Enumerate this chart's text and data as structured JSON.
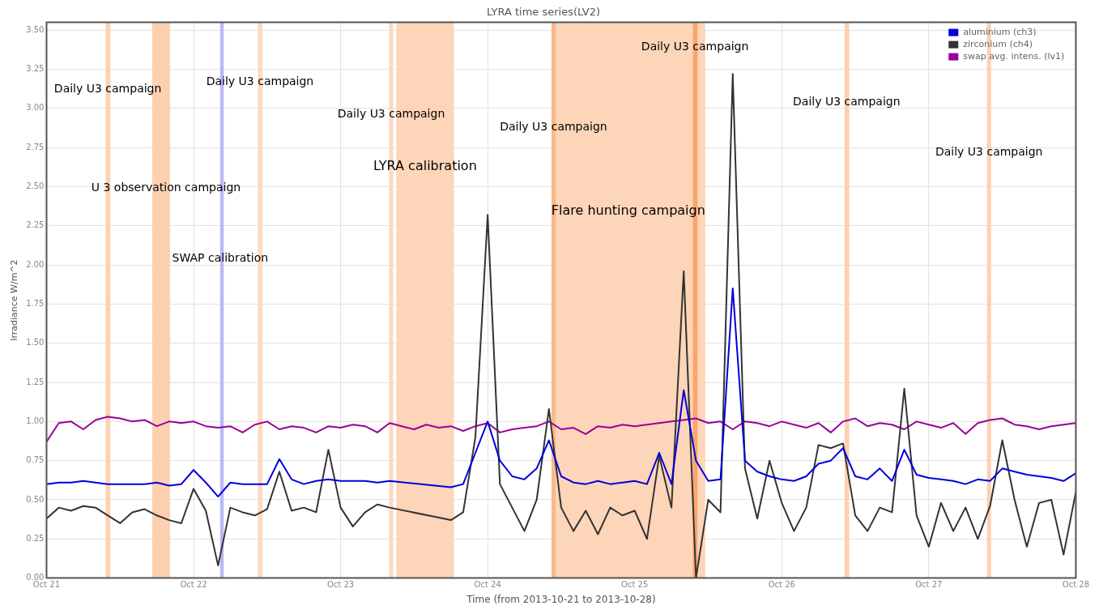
{
  "chart_data": {
    "type": "line",
    "title": "LYRA time series(LV2)",
    "xlabel": "Time (from 2013-10-21 to 2013-10-28)",
    "ylabel": "Irradiance W/m^2",
    "x": [
      "2013-10-21T00:00",
      "2013-10-21T02:00",
      "2013-10-21T04:00",
      "2013-10-21T06:00",
      "2013-10-21T08:00",
      "2013-10-21T10:00",
      "2013-10-21T12:00",
      "2013-10-21T14:00",
      "2013-10-21T16:00",
      "2013-10-21T18:00",
      "2013-10-21T20:00",
      "2013-10-21T22:00",
      "2013-10-22T00:00",
      "2013-10-22T02:00",
      "2013-10-22T04:00",
      "2013-10-22T06:00",
      "2013-10-22T08:00",
      "2013-10-22T10:00",
      "2013-10-22T12:00",
      "2013-10-22T14:00",
      "2013-10-22T16:00",
      "2013-10-22T18:00",
      "2013-10-22T20:00",
      "2013-10-22T22:00",
      "2013-10-23T00:00",
      "2013-10-23T02:00",
      "2013-10-23T04:00",
      "2013-10-23T06:00",
      "2013-10-23T08:00",
      "2013-10-23T10:00",
      "2013-10-23T12:00",
      "2013-10-23T14:00",
      "2013-10-23T16:00",
      "2013-10-23T18:00",
      "2013-10-23T20:00",
      "2013-10-23T22:00",
      "2013-10-24T00:00",
      "2013-10-24T02:00",
      "2013-10-24T04:00",
      "2013-10-24T06:00",
      "2013-10-24T08:00",
      "2013-10-24T10:00",
      "2013-10-24T12:00",
      "2013-10-24T14:00",
      "2013-10-24T16:00",
      "2013-10-24T18:00",
      "2013-10-24T20:00",
      "2013-10-24T22:00",
      "2013-10-25T00:00",
      "2013-10-25T02:00",
      "2013-10-25T04:00",
      "2013-10-25T06:00",
      "2013-10-25T08:00",
      "2013-10-25T10:00",
      "2013-10-25T12:00",
      "2013-10-25T14:00",
      "2013-10-25T16:00",
      "2013-10-25T18:00",
      "2013-10-25T20:00",
      "2013-10-25T22:00",
      "2013-10-26T00:00",
      "2013-10-26T02:00",
      "2013-10-26T04:00",
      "2013-10-26T06:00",
      "2013-10-26T08:00",
      "2013-10-26T10:00",
      "2013-10-26T12:00",
      "2013-10-26T14:00",
      "2013-10-26T16:00",
      "2013-10-26T18:00",
      "2013-10-26T20:00",
      "2013-10-26T22:00",
      "2013-10-27T00:00",
      "2013-10-27T02:00",
      "2013-10-27T04:00",
      "2013-10-27T06:00",
      "2013-10-27T08:00",
      "2013-10-27T10:00",
      "2013-10-27T12:00",
      "2013-10-27T14:00",
      "2013-10-27T16:00",
      "2013-10-27T18:00",
      "2013-10-27T20:00",
      "2013-10-27T22:00",
      "2013-10-28T00:00"
    ],
    "series": [
      {
        "name": "aluminium (ch3)",
        "color": "#0000dd",
        "values": [
          0.6,
          0.61,
          0.61,
          0.62,
          0.61,
          0.6,
          0.6,
          0.6,
          0.6,
          0.61,
          0.59,
          0.6,
          0.69,
          0.61,
          0.52,
          0.61,
          0.6,
          0.6,
          0.6,
          0.76,
          0.63,
          0.6,
          0.62,
          0.63,
          0.62,
          0.62,
          0.62,
          0.61,
          0.62,
          null,
          null,
          null,
          null,
          0.58,
          0.6,
          0.8,
          1.0,
          0.75,
          0.65,
          0.63,
          0.7,
          0.88,
          0.65,
          0.61,
          0.6,
          0.62,
          0.6,
          0.61,
          0.62,
          0.6,
          0.8,
          0.6,
          1.2,
          0.75,
          0.62,
          0.63,
          1.85,
          0.75,
          0.68,
          0.65,
          0.63,
          0.62,
          0.65,
          0.73,
          0.75,
          0.83,
          0.65,
          0.63,
          0.7,
          0.62,
          0.82,
          0.66,
          0.64,
          0.63,
          0.62,
          0.6,
          0.63,
          0.62,
          0.7,
          0.68,
          0.66,
          0.65,
          0.64,
          0.62,
          0.67
        ]
      },
      {
        "name": "zirconium (ch4)",
        "color": "#333333",
        "values": [
          0.38,
          0.45,
          0.43,
          0.46,
          0.45,
          0.4,
          0.35,
          0.42,
          0.44,
          0.4,
          0.37,
          0.35,
          0.57,
          0.43,
          0.08,
          0.45,
          0.42,
          0.4,
          0.44,
          0.68,
          0.43,
          0.45,
          0.42,
          0.82,
          0.45,
          0.33,
          0.42,
          0.47,
          0.45,
          null,
          null,
          null,
          null,
          0.37,
          0.42,
          0.9,
          2.32,
          0.6,
          0.45,
          0.3,
          0.5,
          1.08,
          0.45,
          0.3,
          0.43,
          0.28,
          0.45,
          0.4,
          0.43,
          0.25,
          0.78,
          0.45,
          1.96,
          0.0,
          0.5,
          0.42,
          3.22,
          0.7,
          0.38,
          0.75,
          0.48,
          0.3,
          0.45,
          0.85,
          0.83,
          0.86,
          0.4,
          0.3,
          0.45,
          0.42,
          1.21,
          0.4,
          0.2,
          0.48,
          0.3,
          0.45,
          0.25,
          0.46,
          0.88,
          0.5,
          0.2,
          0.48,
          0.5,
          0.15,
          0.55
        ]
      },
      {
        "name": "swap avg. intens. (lv1)",
        "color": "#990099",
        "values": [
          0.87,
          0.99,
          1.0,
          0.95,
          1.01,
          1.03,
          1.02,
          1.0,
          1.01,
          0.97,
          1.0,
          0.99,
          1.0,
          0.97,
          0.96,
          0.97,
          0.93,
          0.98,
          1.0,
          0.95,
          0.97,
          0.96,
          0.93,
          0.97,
          0.96,
          0.98,
          0.97,
          0.93,
          0.99,
          0.97,
          0.95,
          0.98,
          0.96,
          0.97,
          0.94,
          0.97,
          0.99,
          0.93,
          0.95,
          0.96,
          0.97,
          1.0,
          0.95,
          0.96,
          0.92,
          0.97,
          0.96,
          0.98,
          0.97,
          0.98,
          0.99,
          1.0,
          1.01,
          1.02,
          0.99,
          1.0,
          0.95,
          1.0,
          0.99,
          0.97,
          1.0,
          0.98,
          0.96,
          0.99,
          0.93,
          1.0,
          1.02,
          0.97,
          0.99,
          0.98,
          0.95,
          1.0,
          0.98,
          0.96,
          0.99,
          0.92,
          0.99,
          1.01,
          1.02,
          0.98,
          0.97,
          0.95,
          0.97,
          0.98,
          0.99
        ]
      }
    ],
    "xlim": [
      "2013-10-21T00:00",
      "2013-10-28T00:00"
    ],
    "xticks": [
      {
        "value": "2013-10-21",
        "label": "Oct 21"
      },
      {
        "value": "2013-10-22",
        "label": "Oct 22"
      },
      {
        "value": "2013-10-23",
        "label": "Oct 23"
      },
      {
        "value": "2013-10-24",
        "label": "Oct 24"
      },
      {
        "value": "2013-10-25",
        "label": "Oct 25"
      },
      {
        "value": "2013-10-26",
        "label": "Oct 26"
      },
      {
        "value": "2013-10-27",
        "label": "Oct 27"
      },
      {
        "value": "2013-10-28",
        "label": "Oct 28"
      }
    ],
    "ylim": [
      0,
      3.55
    ],
    "yticks": [
      {
        "value": 0,
        "label": "0.00"
      },
      {
        "value": 0.25,
        "label": "0.25"
      },
      {
        "value": 0.5,
        "label": "0.50"
      },
      {
        "value": 0.75,
        "label": "0.75"
      },
      {
        "value": 1,
        "label": "1.00"
      },
      {
        "value": 1.25,
        "label": "1.25"
      },
      {
        "value": 1.5,
        "label": "1.50"
      },
      {
        "value": 1.75,
        "label": "1.75"
      },
      {
        "value": 2,
        "label": "2.00"
      },
      {
        "value": 2.25,
        "label": "2.25"
      },
      {
        "value": 2.5,
        "label": "2.50"
      },
      {
        "value": 2.75,
        "label": "2.75"
      },
      {
        "value": 3,
        "label": "3.00"
      },
      {
        "value": 3.25,
        "label": "3.25"
      },
      {
        "value": 3.5,
        "label": "3.50"
      }
    ],
    "bands": [
      {
        "axis": "x",
        "from": "2013-10-21T09:40",
        "to": "2013-10-21T10:25",
        "color": "#fdd0b0"
      },
      {
        "axis": "x",
        "from": "2013-10-21T17:15",
        "to": "2013-10-21T20:10",
        "color": "#fdd0b0"
      },
      {
        "axis": "x",
        "from": "2013-10-22T04:20",
        "to": "2013-10-22T04:55",
        "color": "#b8b8f8"
      },
      {
        "axis": "x",
        "from": "2013-10-22T10:30",
        "to": "2013-10-22T11:15",
        "color": "#fdd8c0"
      },
      {
        "axis": "x",
        "from": "2013-10-23T07:55",
        "to": "2013-10-23T08:35",
        "color": "#fdd8c0"
      },
      {
        "axis": "x",
        "from": "2013-10-23T09:05",
        "to": "2013-10-23T18:30",
        "color": "#fdd5b8",
        "label": "LYRA calibration"
      },
      {
        "axis": "x",
        "from": "2013-10-24T10:25",
        "to": "2013-10-25T11:30",
        "color": "#fdd5b8",
        "label": "Flare hunting campaign"
      },
      {
        "axis": "x",
        "from": "2013-10-24T10:25",
        "to": "2013-10-24T11:05",
        "color": "#fbb889"
      },
      {
        "axis": "x",
        "from": "2013-10-25T09:30",
        "to": "2013-10-25T10:15",
        "color": "#f9a66e"
      },
      {
        "axis": "x",
        "from": "2013-10-26T10:15",
        "to": "2013-10-26T11:00",
        "color": "#fdd0b0"
      },
      {
        "axis": "x",
        "from": "2013-10-27T09:30",
        "to": "2013-10-27T10:10",
        "color": "#fdd0b0"
      }
    ],
    "annotations": [
      {
        "text": "Daily U3 campaign",
        "x": "2013-10-21T10:00",
        "y": 3.12
      },
      {
        "text": "U 3 observation campaign",
        "x": "2013-10-21T19:30",
        "y": 2.49
      },
      {
        "text": "SWAP calibration",
        "x": "2013-10-22T04:20",
        "y": 2.04
      },
      {
        "text": "Daily U3 campaign",
        "x": "2013-10-22T10:50",
        "y": 3.17
      },
      {
        "text": "Daily U3 campaign",
        "x": "2013-10-23T08:15",
        "y": 2.96
      },
      {
        "text": "Daily U3 campaign",
        "x": "2013-10-24T10:45",
        "y": 2.88
      },
      {
        "text": "Daily U3 campaign",
        "x": "2013-10-25T09:50",
        "y": 3.39
      },
      {
        "text": "Daily U3 campaign",
        "x": "2013-10-26T10:35",
        "y": 3.04
      },
      {
        "text": "Daily U3 campaign",
        "x": "2013-10-27T09:50",
        "y": 2.72
      }
    ],
    "grid": true,
    "legend": "top right",
    "marker": "none",
    "line_style": "solid"
  }
}
